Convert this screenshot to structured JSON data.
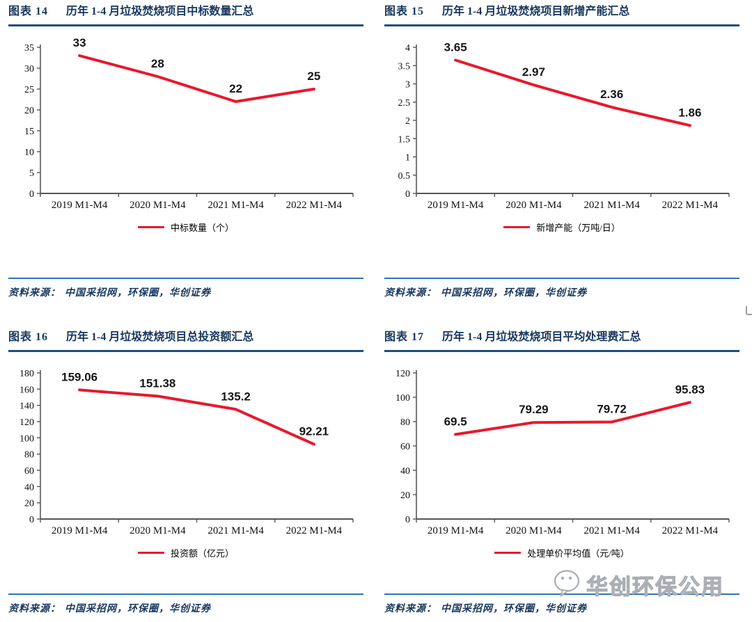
{
  "page": {
    "background": "#ffffff"
  },
  "colors": {
    "title_navy": "#17375E",
    "title_rule_blue": "#1F4E79",
    "source_rule_blue": "#2E75B6",
    "line_red": "#E8192C",
    "axis_gray": "#555555",
    "watermark_gray": "#a9aeb3"
  },
  "source": {
    "prefix": "资料来源：",
    "text": "中国采招网，环保圈，华创证券"
  },
  "watermark": {
    "icon": "wechat-icon",
    "text": "华创环保公用"
  },
  "chart_data": [
    {
      "type": "line",
      "figure_tag": "图表 14",
      "title": "历年 1-4 月垃圾焚烧项目中标数量汇总",
      "legend": "中标数量（个）",
      "categories": [
        "2019 M1-M4",
        "2020 M1-M4",
        "2021 M1-M4",
        "2022 M1-M4"
      ],
      "values": [
        33,
        28,
        22,
        25
      ],
      "labels": [
        "33",
        "28",
        "22",
        "25"
      ],
      "ylim": [
        0,
        35
      ],
      "yticks": [
        0,
        5,
        10,
        15,
        20,
        25,
        30,
        35
      ],
      "line_color": "#E8192C",
      "grid": false,
      "legend_position": "bottom"
    },
    {
      "type": "line",
      "figure_tag": "图表 15",
      "title": "历年 1-4 月垃圾焚烧项目新增产能汇总",
      "legend": "新增产能（万吨/日）",
      "categories": [
        "2019 M1-M4",
        "2020 M1-M4",
        "2021 M1-M4",
        "2022 M1-M4"
      ],
      "values": [
        3.65,
        2.97,
        2.36,
        1.86
      ],
      "labels": [
        "3.65",
        "2.97",
        "2.36",
        "1.86"
      ],
      "ylim": [
        0,
        4
      ],
      "yticks": [
        0,
        0.5,
        1,
        1.5,
        2,
        2.5,
        3,
        3.5,
        4
      ],
      "line_color": "#E8192C",
      "grid": false,
      "legend_position": "bottom"
    },
    {
      "type": "line",
      "figure_tag": "图表 16",
      "title": "历年 1-4 月垃圾焚烧项目总投资额汇总",
      "legend": "投资额（亿元）",
      "categories": [
        "2019 M1-M4",
        "2020 M1-M4",
        "2021 M1-M4",
        "2022 M1-M4"
      ],
      "values": [
        159.06,
        151.38,
        135.2,
        92.21
      ],
      "labels": [
        "159.06",
        "151.38",
        "135.2",
        "92.21"
      ],
      "ylim": [
        0,
        180
      ],
      "yticks": [
        0,
        20,
        40,
        60,
        80,
        100,
        120,
        140,
        160,
        180
      ],
      "line_color": "#E8192C",
      "grid": false,
      "legend_position": "bottom"
    },
    {
      "type": "line",
      "figure_tag": "图表 17",
      "title": "历年 1-4 月垃圾焚烧项目平均处理费汇总",
      "legend": "处理单价平均值（元/吨）",
      "categories": [
        "2019 M1-M4",
        "2020 M1-M4",
        "2021 M1-M4",
        "2022 M1-M4"
      ],
      "values": [
        69.5,
        79.29,
        79.72,
        95.83
      ],
      "labels": [
        "69.5",
        "79.29",
        "79.72",
        "95.83"
      ],
      "ylim": [
        0,
        120
      ],
      "yticks": [
        0,
        20,
        40,
        60,
        80,
        100,
        120
      ],
      "line_color": "#E8192C",
      "grid": false,
      "legend_position": "bottom"
    }
  ]
}
